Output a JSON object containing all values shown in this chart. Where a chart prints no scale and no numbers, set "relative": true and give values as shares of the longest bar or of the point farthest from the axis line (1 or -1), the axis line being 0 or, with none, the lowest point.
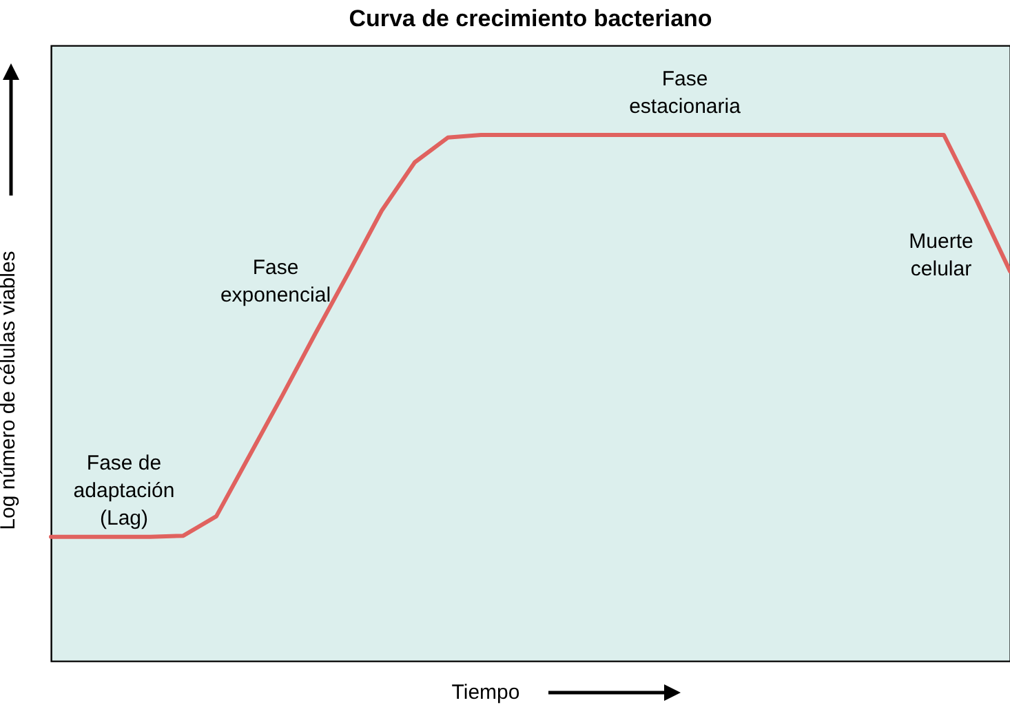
{
  "chart_data": {
    "type": "line",
    "title": "Curva de crecimiento bacteriano",
    "xlabel": "Tiempo",
    "ylabel": "Log número de células viables",
    "relative": true,
    "categories": [
      null,
      null,
      null,
      null,
      null,
      null,
      null,
      null,
      null,
      null,
      null,
      null,
      null,
      null,
      null,
      null,
      null,
      null,
      null,
      null,
      null,
      null,
      null,
      null,
      null,
      null,
      null,
      null,
      null,
      null
    ],
    "series": [
      {
        "color": "#e0625f",
        "values": [
          0.236,
          0.236,
          0.236,
          0.236,
          0.238,
          0.275,
          0.39,
          0.505,
          0.623,
          0.738,
          0.856,
          0.948,
          0.995,
          1,
          1,
          1,
          1,
          1,
          1,
          1,
          1,
          1,
          1,
          1,
          1,
          1,
          1,
          1,
          0.874,
          0.741
        ]
      }
    ],
    "annotations": [
      "Fase de\nadaptación\n(Lag)",
      "Fase\nexponencial",
      "Fase\nestacionaria",
      "Muerte\ncelular"
    ],
    "grid": false,
    "legend": false
  }
}
